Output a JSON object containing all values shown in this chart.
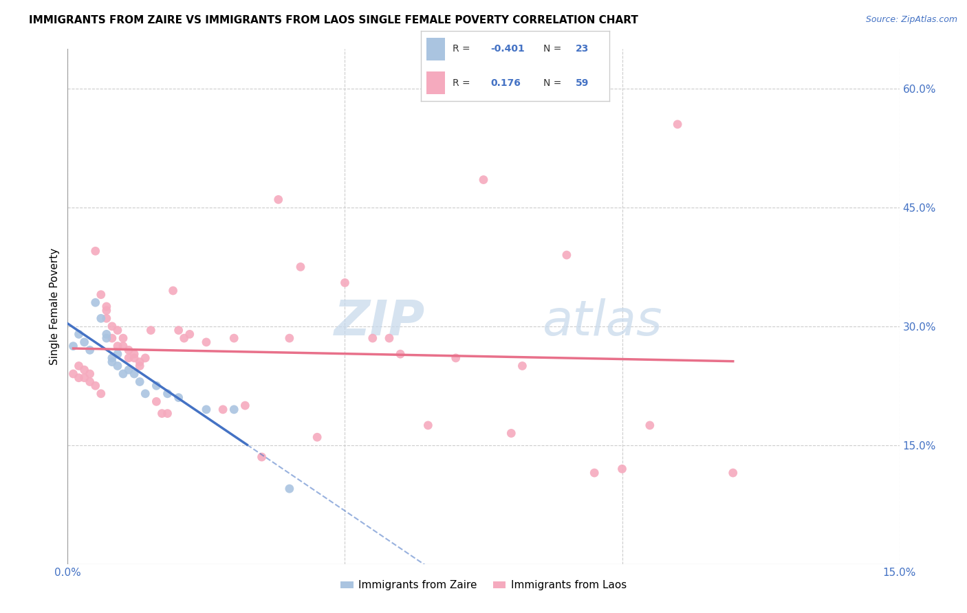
{
  "title": "IMMIGRANTS FROM ZAIRE VS IMMIGRANTS FROM LAOS SINGLE FEMALE POVERTY CORRELATION CHART",
  "source": "Source: ZipAtlas.com",
  "ylabel": "Single Female Poverty",
  "xlim": [
    0.0,
    0.15
  ],
  "ylim": [
    0.0,
    0.65
  ],
  "y_ticks_right": [
    0.15,
    0.3,
    0.45,
    0.6
  ],
  "y_tick_labels_right": [
    "15.0%",
    "30.0%",
    "45.0%",
    "60.0%"
  ],
  "zaire_color": "#aac4e0",
  "laos_color": "#f5aabe",
  "zaire_line_color": "#4472c4",
  "laos_line_color": "#e8708a",
  "R_zaire": -0.401,
  "N_zaire": 23,
  "R_laos": 0.176,
  "N_laos": 59,
  "watermark": "ZIPAtlas",
  "watermark_color": "#d0e0ef",
  "zaire_x": [
    0.001,
    0.002,
    0.003,
    0.004,
    0.005,
    0.006,
    0.007,
    0.007,
    0.008,
    0.008,
    0.009,
    0.009,
    0.01,
    0.011,
    0.012,
    0.013,
    0.014,
    0.016,
    0.018,
    0.02,
    0.025,
    0.03,
    0.04
  ],
  "zaire_y": [
    0.275,
    0.29,
    0.28,
    0.27,
    0.33,
    0.31,
    0.29,
    0.285,
    0.26,
    0.255,
    0.265,
    0.25,
    0.24,
    0.245,
    0.24,
    0.23,
    0.215,
    0.225,
    0.215,
    0.21,
    0.195,
    0.195,
    0.095
  ],
  "laos_x": [
    0.001,
    0.002,
    0.002,
    0.003,
    0.003,
    0.004,
    0.004,
    0.005,
    0.005,
    0.006,
    0.006,
    0.007,
    0.007,
    0.007,
    0.008,
    0.008,
    0.009,
    0.009,
    0.01,
    0.01,
    0.011,
    0.011,
    0.012,
    0.012,
    0.013,
    0.013,
    0.014,
    0.015,
    0.016,
    0.017,
    0.018,
    0.019,
    0.02,
    0.021,
    0.022,
    0.025,
    0.028,
    0.03,
    0.032,
    0.035,
    0.038,
    0.04,
    0.042,
    0.045,
    0.05,
    0.055,
    0.058,
    0.06,
    0.065,
    0.07,
    0.075,
    0.08,
    0.082,
    0.09,
    0.095,
    0.1,
    0.105,
    0.11,
    0.12
  ],
  "laos_y": [
    0.24,
    0.25,
    0.235,
    0.245,
    0.235,
    0.23,
    0.24,
    0.395,
    0.225,
    0.34,
    0.215,
    0.325,
    0.31,
    0.32,
    0.3,
    0.285,
    0.295,
    0.275,
    0.285,
    0.275,
    0.26,
    0.27,
    0.26,
    0.265,
    0.255,
    0.25,
    0.26,
    0.295,
    0.205,
    0.19,
    0.19,
    0.345,
    0.295,
    0.285,
    0.29,
    0.28,
    0.195,
    0.285,
    0.2,
    0.135,
    0.46,
    0.285,
    0.375,
    0.16,
    0.355,
    0.285,
    0.285,
    0.265,
    0.175,
    0.26,
    0.485,
    0.165,
    0.25,
    0.39,
    0.115,
    0.12,
    0.175,
    0.555,
    0.115
  ],
  "legend_R_color": "#4472c4",
  "legend_N_color": "#4472c4"
}
